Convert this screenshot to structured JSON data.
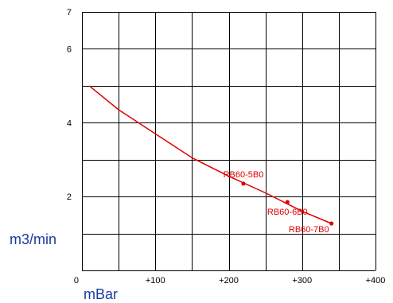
{
  "chart_data": {
    "type": "line",
    "title": "",
    "xlabel": "mBar",
    "ylabel": "m3/min",
    "xlim": [
      0,
      400
    ],
    "ylim": [
      0,
      7
    ],
    "grid": true,
    "x_ticks": [
      {
        "value": 0,
        "label": "0"
      },
      {
        "value": 100,
        "label": "+100"
      },
      {
        "value": 200,
        "label": "+200"
      },
      {
        "value": 300,
        "label": "+300"
      },
      {
        "value": 400,
        "label": "+400"
      }
    ],
    "x_gridlines": [
      0,
      50,
      100,
      150,
      200,
      250,
      300,
      350,
      400
    ],
    "y_ticks": [
      {
        "value": 2,
        "label": "2"
      },
      {
        "value": 4,
        "label": "4"
      },
      {
        "value": 6,
        "label": "6"
      },
      {
        "value": 7,
        "label": "7"
      }
    ],
    "y_gridlines": [
      0,
      1,
      2,
      3,
      4,
      5,
      6,
      7
    ],
    "series": [
      {
        "color": "#e00000",
        "x": [
          10,
          50,
          100,
          150,
          200,
          250,
          300,
          340
        ],
        "y": [
          5.0,
          4.35,
          3.7,
          3.05,
          2.55,
          2.1,
          1.6,
          1.27
        ]
      }
    ],
    "points": [
      {
        "label": "RB60-5B0",
        "x": 220,
        "y": 2.35
      },
      {
        "label": "RB60-6B0",
        "x": 280,
        "y": 1.85
      },
      {
        "label": "RB60-7B0",
        "x": 340,
        "y": 1.27
      }
    ],
    "colors": {
      "line": "#e00000",
      "grid": "#000000",
      "unit_text": "#1a3aa0"
    }
  }
}
